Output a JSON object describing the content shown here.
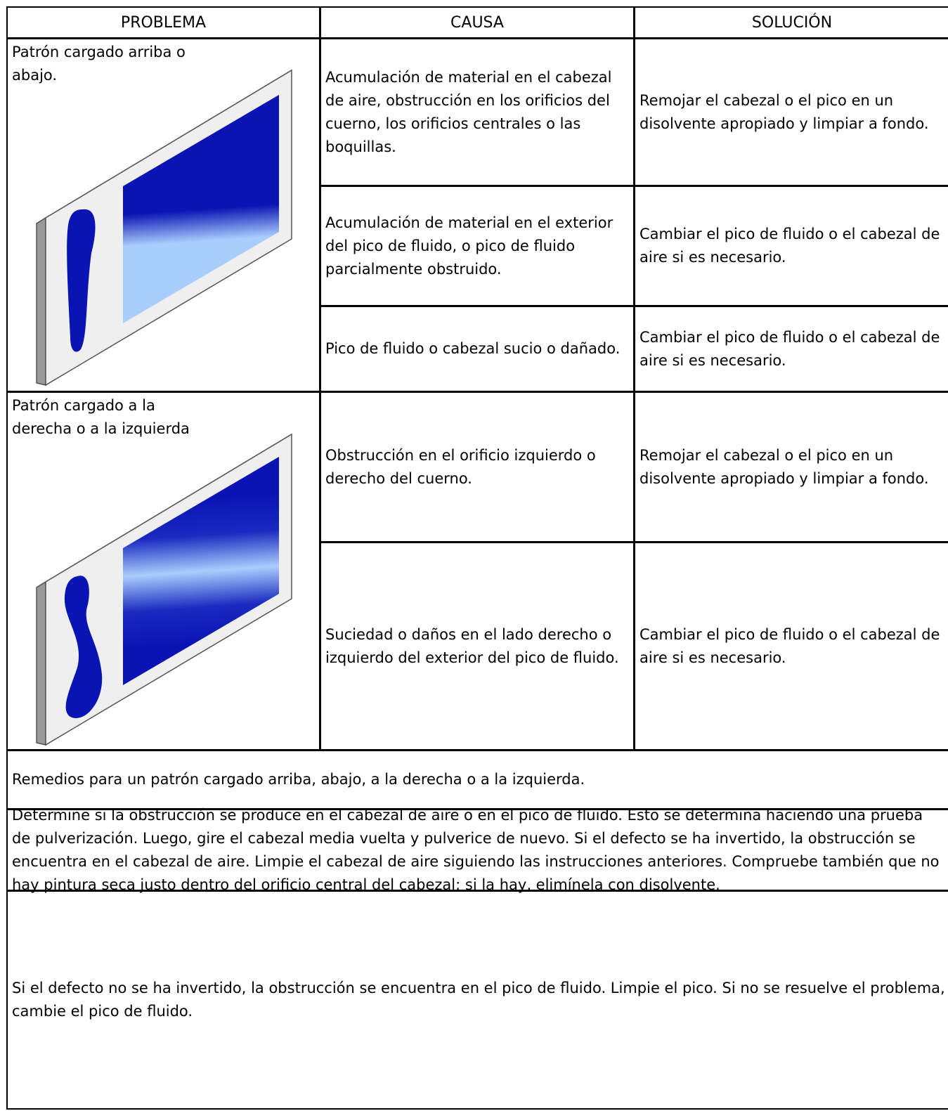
{
  "table": {
    "header": [
      "PROBLEMA",
      "CAUSA",
      "SOLUCIÓN"
    ],
    "groups": [
      {
        "problem": "Patrón cargado arriba o abajo.",
        "rows": [
          {
            "cause": "Acumulación de material en el cabezal de aire, obstrucción en los orificios del cuerno, los orificios centrales o las boquillas.",
            "solution": "Remojar el cabezal o el pico en un disolvente apropiado y limpiar a fondo."
          },
          {
            "cause": "Acumulación de material en el exterior del pico de fluido, o pico de fluido parcialmente obstruido.",
            "solution": "Cambiar el pico de fluido o el cabezal de aire si es necesario."
          },
          {
            "cause": "Pico de fluido o cabezal sucio o dañado.",
            "solution": "Cambiar el pico de fluido o el cabezal de aire si es necesario."
          }
        ]
      },
      {
        "problem": "Patrón cargado a la derecha o a la izquierda",
        "rows": [
          {
            "cause": "Obstrucción en el orificio izquierdo o derecho del cuerno.",
            "solution": "Remojar el cabezal o el pico en un disolvente apropiado y limpiar a fondo."
          },
          {
            "cause": "Suciedad o daños en el lado derecho o izquierdo del exterior del pico de fluido.",
            "solution": "Cambiar el pico de fluido o el cabezal de aire si es necesario."
          }
        ]
      }
    ],
    "notes": [
      "Remedios para un patrón cargado arriba, abajo, a la derecha o a la izquierda.",
      "Determine si la obstrucción se produce en el cabezal de aire o en el pico de fluido. Esto se determina haciendo una prueba de pulverización. Luego, gire el cabezal media vuelta y pulverice de nuevo. Si el defecto se ha invertido, la obstrucción se encuentra en el cabezal de aire. Limpie el cabezal de aire siguiendo las instrucciones anteriores. Compruebe también que no hay pintura seca justo dentro del orificio central del cabezal; si la hay, elimínela con disolvente.",
      "Si el defecto no se ha invertido, la obstrucción se encuentra en el pico de fluido. Limpie el pico. Si no se resuelve el problema, cambie el pico de fluido."
    ]
  }
}
